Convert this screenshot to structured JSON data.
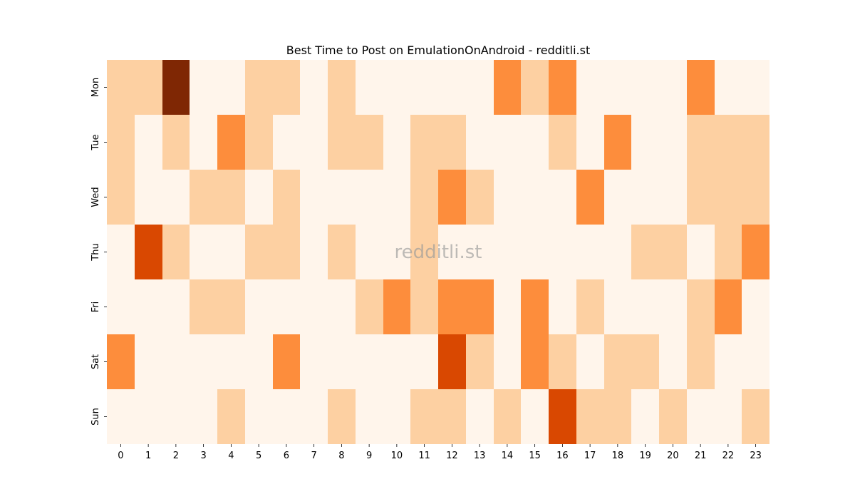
{
  "chart_data": {
    "type": "heatmap",
    "title": "Best Time to Post on EmulationOnAndroid - redditli.st",
    "watermark": "redditli.st",
    "xlabel": "",
    "ylabel": "",
    "x_categories": [
      "0",
      "1",
      "2",
      "3",
      "4",
      "5",
      "6",
      "7",
      "8",
      "9",
      "10",
      "11",
      "12",
      "13",
      "14",
      "15",
      "16",
      "17",
      "18",
      "19",
      "20",
      "21",
      "22",
      "23"
    ],
    "y_categories": [
      "Mon",
      "Tue",
      "Wed",
      "Thu",
      "Fri",
      "Sat",
      "Sun"
    ],
    "colormap": "Oranges",
    "legend": "none",
    "grid": false,
    "values": [
      [
        1,
        1,
        4,
        0,
        0,
        1,
        1,
        0,
        1,
        0,
        0,
        0,
        0,
        0,
        2,
        1,
        2,
        0,
        0,
        0,
        0,
        2,
        0,
        0
      ],
      [
        1,
        0,
        1,
        0,
        2,
        1,
        0,
        0,
        1,
        1,
        0,
        1,
        1,
        0,
        0,
        0,
        1,
        0,
        2,
        0,
        0,
        1,
        1,
        1
      ],
      [
        1,
        0,
        0,
        1,
        1,
        0,
        1,
        0,
        0,
        0,
        0,
        1,
        2,
        1,
        0,
        0,
        0,
        2,
        0,
        0,
        0,
        1,
        1,
        1
      ],
      [
        0,
        3,
        1,
        0,
        0,
        1,
        1,
        0,
        1,
        0,
        0,
        1,
        0,
        0,
        0,
        0,
        0,
        0,
        0,
        1,
        1,
        0,
        1,
        2
      ],
      [
        0,
        0,
        0,
        1,
        1,
        0,
        0,
        0,
        0,
        1,
        2,
        1,
        2,
        2,
        0,
        2,
        0,
        1,
        0,
        0,
        0,
        1,
        2,
        0
      ],
      [
        2,
        0,
        0,
        0,
        0,
        0,
        2,
        0,
        0,
        0,
        0,
        0,
        3,
        1,
        0,
        2,
        1,
        0,
        1,
        1,
        0,
        1,
        0,
        0
      ],
      [
        0,
        0,
        0,
        0,
        1,
        0,
        0,
        0,
        1,
        0,
        0,
        1,
        1,
        0,
        1,
        0,
        3,
        1,
        1,
        0,
        1,
        0,
        0,
        1
      ]
    ],
    "level_colors": [
      "#fff5eb",
      "#fdd0a2",
      "#fd8d3c",
      "#d94801",
      "#7f2704"
    ]
  }
}
